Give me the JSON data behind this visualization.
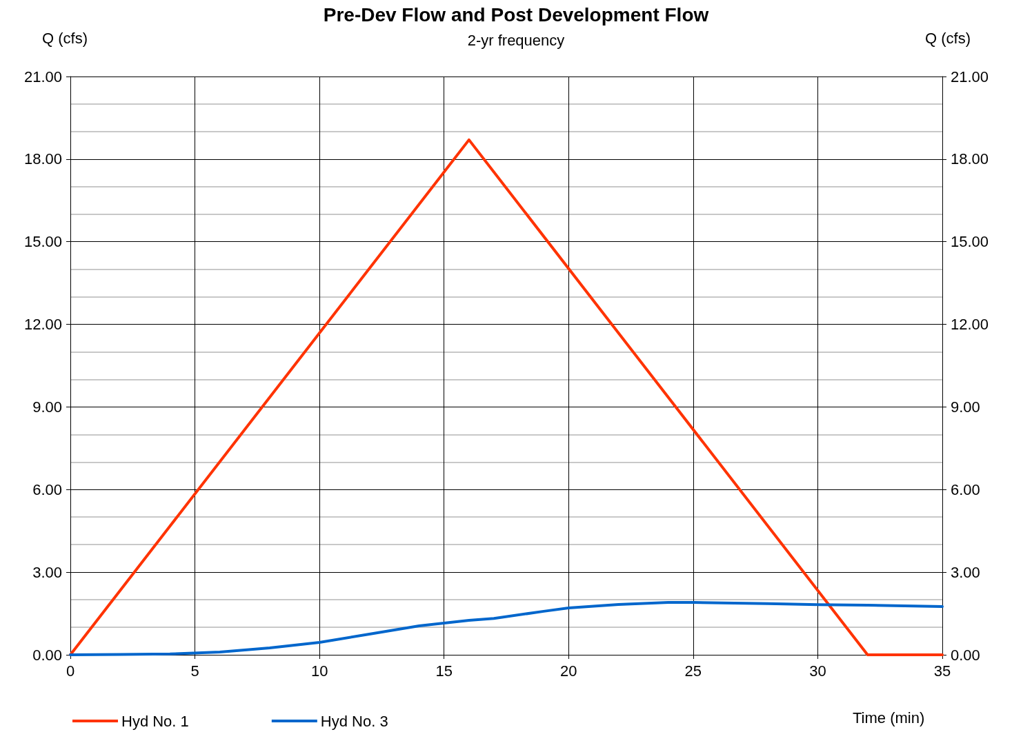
{
  "chart_data": {
    "type": "line",
    "title": "Pre-Dev Flow and Post Development Flow",
    "subtitle": "2-yr frequency",
    "xlabel": "Time (min)",
    "ylabel": "Q (cfs)",
    "y2label": "Q (cfs)",
    "xlim": [
      0,
      35
    ],
    "xticks": [
      0,
      5,
      10,
      15,
      20,
      25,
      30,
      35
    ],
    "ylim": [
      0,
      21
    ],
    "yticks": [
      {
        "value": 0,
        "label": "0.00"
      },
      {
        "value": 3,
        "label": "3.00"
      },
      {
        "value": 6,
        "label": "6.00"
      },
      {
        "value": 9,
        "label": "9.00"
      },
      {
        "value": 12,
        "label": "12.00"
      },
      {
        "value": 15,
        "label": "15.00"
      },
      {
        "value": 18,
        "label": "18.00"
      },
      {
        "value": 21,
        "label": "21.00"
      }
    ],
    "y2lim": [
      0,
      21
    ],
    "y2ticks": [
      {
        "value": 0,
        "label": "0.00"
      },
      {
        "value": 3,
        "label": "3.00"
      },
      {
        "value": 6,
        "label": "6.00"
      },
      {
        "value": 9,
        "label": "9.00"
      },
      {
        "value": 12,
        "label": "12.00"
      },
      {
        "value": 15,
        "label": "15.00"
      },
      {
        "value": 18,
        "label": "18.00"
      },
      {
        "value": 21,
        "label": "21.00"
      }
    ],
    "grid": true,
    "legend": "bottom left",
    "marker": "none",
    "line_style": "solid",
    "series": [
      {
        "name": "Hyd No. 1",
        "color": "#ff3300",
        "x": [
          0,
          16,
          32,
          35
        ],
        "values": [
          0,
          18.7,
          0,
          0
        ]
      },
      {
        "name": "Hyd No. 3",
        "color": "#0066cc",
        "x": [
          0,
          2,
          4,
          6,
          8,
          10,
          12,
          14,
          16,
          17,
          19,
          20,
          22,
          24,
          25,
          28,
          30,
          32,
          35
        ],
        "values": [
          0,
          0.01,
          0.03,
          0.1,
          0.25,
          0.45,
          0.75,
          1.05,
          1.25,
          1.32,
          1.58,
          1.7,
          1.83,
          1.9,
          1.9,
          1.86,
          1.82,
          1.8,
          1.75
        ]
      }
    ]
  }
}
